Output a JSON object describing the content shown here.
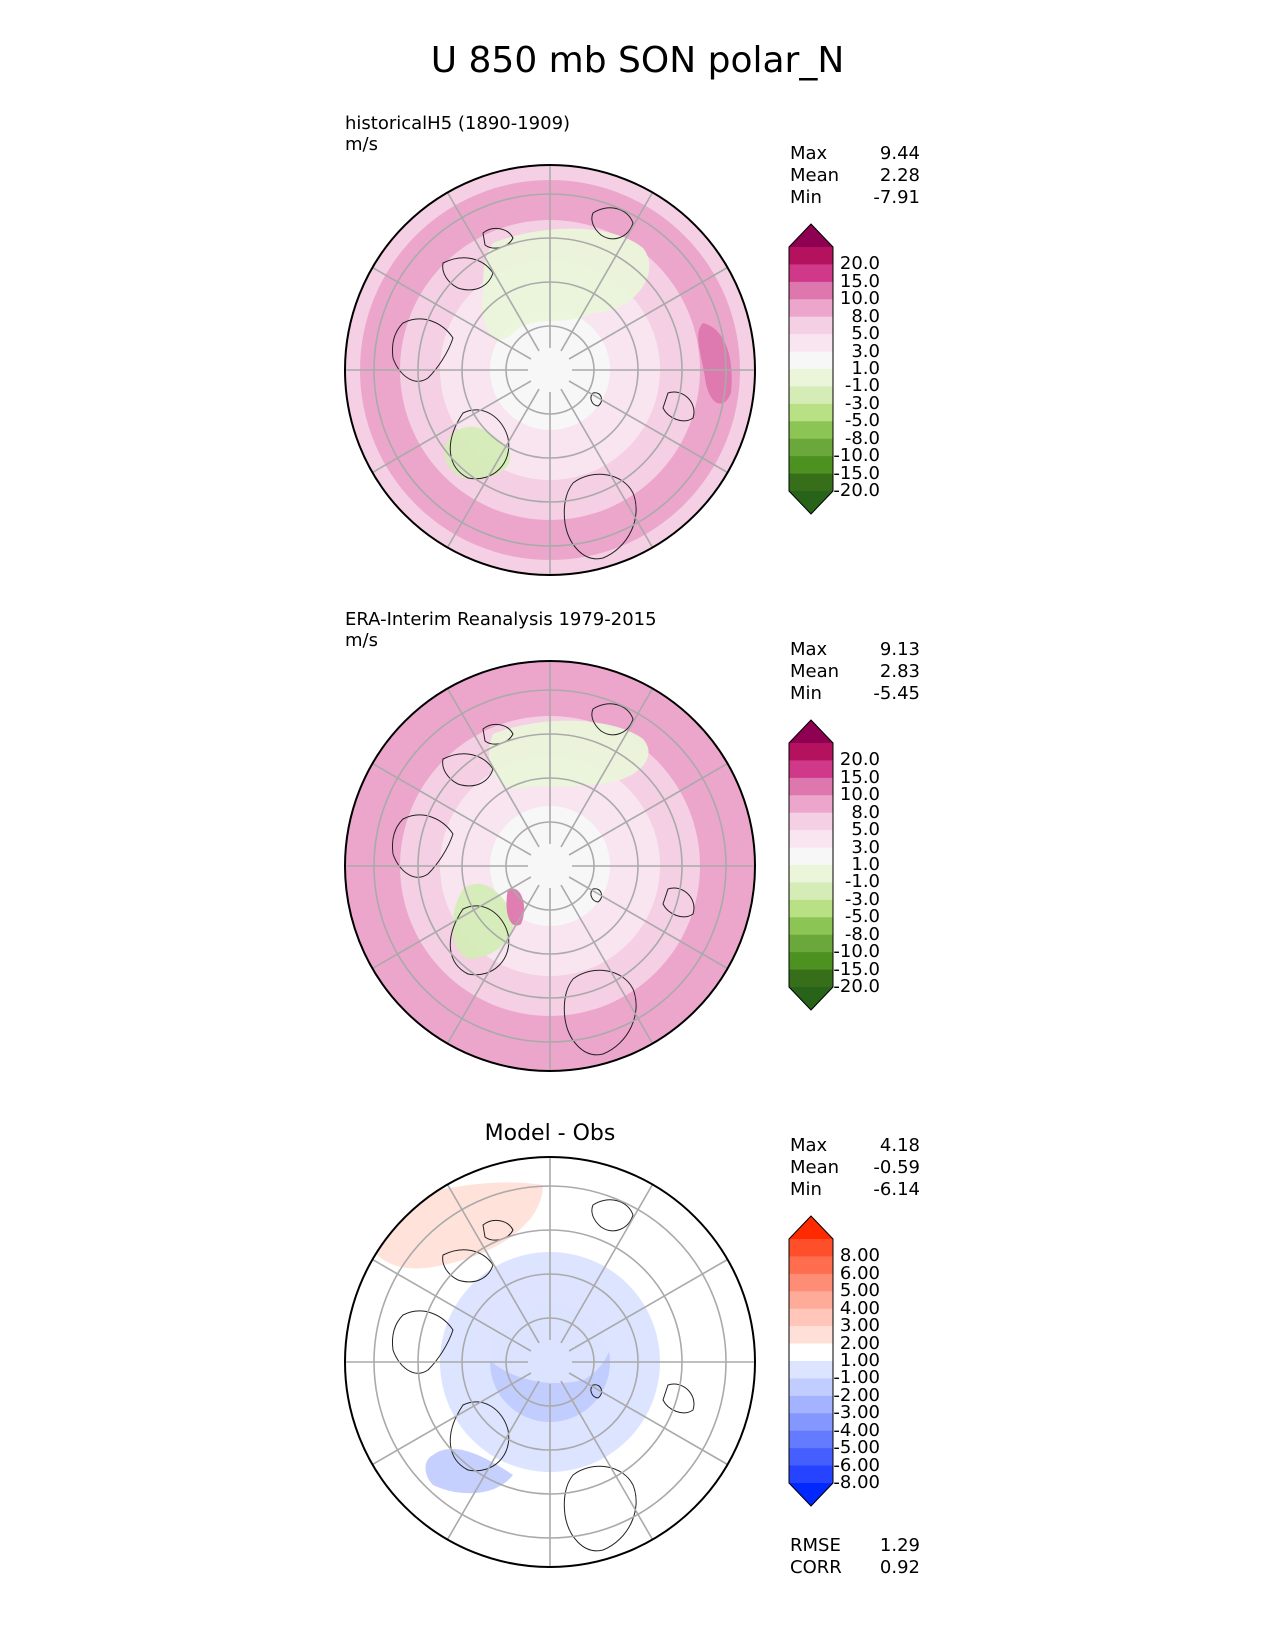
{
  "title": "U 850 mb SON polar_N",
  "panels": [
    {
      "label": "historicalH5 (1890-1909)",
      "units": "m/s",
      "stats": [
        [
          "Max",
          "9.44"
        ],
        [
          "Mean",
          "2.28"
        ],
        [
          "Min",
          "-7.91"
        ]
      ],
      "colorbar": {
        "labels": [
          "20.0",
          "15.0",
          "10.0",
          "8.0",
          "5.0",
          "3.0",
          "1.0",
          "-1.0",
          "-3.0",
          "-5.0",
          "-8.0",
          "-10.0",
          "-15.0",
          "-20.0"
        ],
        "colors": [
          "#8e0152",
          "#b4125e",
          "#d0388a",
          "#de77ae",
          "#eca6cc",
          "#f5cfe3",
          "#f9e5ef",
          "#f7f7f7",
          "#eaf5da",
          "#d5ecb7",
          "#b8e186",
          "#8cc554",
          "#6aa83c",
          "#4d9221",
          "#366e19",
          "#276419"
        ]
      },
      "map": {
        "background": "#f5cfe3",
        "rings": [
          "#eca6cc",
          "#f5cfe3",
          "#f9e5ef",
          "#f7f7f7"
        ],
        "blobs": [
          {
            "color": "#eaf5da",
            "label": "weak-easterly-pacific"
          },
          {
            "color": "#d5ecb7",
            "label": "easterly-greenland"
          },
          {
            "color": "#de77ae",
            "label": "jet-maximum"
          }
        ]
      }
    },
    {
      "label": "ERA-Interim Reanalysis 1979-2015",
      "units": "m/s",
      "stats": [
        [
          "Max",
          "9.13"
        ],
        [
          "Mean",
          "2.83"
        ],
        [
          "Min",
          "-5.45"
        ]
      ],
      "colorbar": {
        "labels": [
          "20.0",
          "15.0",
          "10.0",
          "8.0",
          "5.0",
          "3.0",
          "1.0",
          "-1.0",
          "-3.0",
          "-5.0",
          "-8.0",
          "-10.0",
          "-15.0",
          "-20.0"
        ],
        "colors": [
          "#8e0152",
          "#b4125e",
          "#d0388a",
          "#de77ae",
          "#eca6cc",
          "#f5cfe3",
          "#f9e5ef",
          "#f7f7f7",
          "#eaf5da",
          "#d5ecb7",
          "#b8e186",
          "#8cc554",
          "#6aa83c",
          "#4d9221",
          "#366e19",
          "#276419"
        ]
      },
      "map": {
        "background": "#eca6cc",
        "rings": [
          "#eca6cc",
          "#f5cfe3",
          "#f9e5ef",
          "#f7f7f7"
        ],
        "blobs": [
          {
            "color": "#eaf5da",
            "label": "weak-easterly-pacific"
          },
          {
            "color": "#d5ecb7",
            "label": "easterly-greenland"
          },
          {
            "color": "#de77ae",
            "label": "jet-maximum"
          }
        ]
      }
    },
    {
      "title": "Model - Obs",
      "stats": [
        [
          "Max",
          "4.18"
        ],
        [
          "Mean",
          "-0.59"
        ],
        [
          "Min",
          "-6.14"
        ]
      ],
      "footer_stats": [
        [
          "RMSE",
          "1.29"
        ],
        [
          "CORR",
          "0.92"
        ]
      ],
      "colorbar": {
        "labels": [
          "8.00",
          "6.00",
          "5.00",
          "4.00",
          "3.00",
          "2.00",
          "1.00",
          "-1.00",
          "-2.00",
          "-3.00",
          "-4.00",
          "-5.00",
          "-6.00",
          "-8.00"
        ],
        "colors": [
          "#ff2a00",
          "#ff4e2a",
          "#ff6d4f",
          "#ff8c74",
          "#ffab99",
          "#ffc6b9",
          "#ffe0d8",
          "#ffffff",
          "#dde4ff",
          "#c2cdff",
          "#a3b3ff",
          "#8397ff",
          "#647bff",
          "#455fff",
          "#2643ff",
          "#0028ff"
        ]
      },
      "map": {
        "background": "#ffffff",
        "rings": [
          "#ffffff",
          "#ffffff",
          "#dde4ff",
          "#c2cdff"
        ],
        "blobs": [
          {
            "color": "#ffe0d8",
            "label": "positive-bias-north-pacific"
          },
          {
            "color": "#c2cdff",
            "label": "negative-bias-greenland"
          },
          {
            "color": "#dde4ff",
            "label": "negative-bias-eurasia"
          }
        ]
      }
    }
  ]
}
